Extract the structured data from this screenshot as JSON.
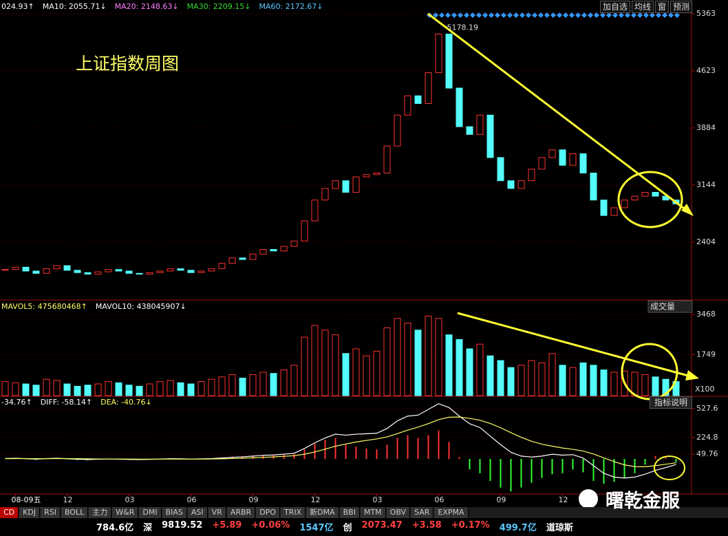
{
  "chart_data": [
    {
      "type": "candlestick",
      "title": "上证指数周图",
      "indicators": [
        {
          "text": "024.93↑",
          "color": "#ffffff"
        },
        {
          "text": "MA10: 2055.71↓",
          "color": "#ffffff"
        },
        {
          "text": "MA20: 2148.63↓",
          "color": "#ff80ff"
        },
        {
          "text": "MA30: 2209.15↓",
          "color": "#33dd33"
        },
        {
          "text": "MA60: 2172.67↓",
          "color": "#5bc8ff"
        }
      ],
      "peak_value": 5178.19,
      "peak_index": 42,
      "up_color": "#ff3232",
      "down_color": "#54fcfc",
      "categories": [
        null,
        "08-09五",
        null,
        null,
        null,
        null,
        "12",
        null,
        null,
        null,
        null,
        null,
        "03",
        null,
        null,
        null,
        null,
        null,
        "06",
        null,
        null,
        null,
        null,
        null,
        "09",
        null,
        null,
        null,
        null,
        null,
        "12",
        null,
        null,
        null,
        null,
        null,
        "03",
        null,
        null,
        null,
        null,
        null,
        "06",
        null,
        null,
        null,
        null,
        null,
        "09",
        null,
        null,
        null,
        null,
        null,
        "12",
        null,
        null,
        null,
        null,
        null,
        null,
        null,
        null,
        null,
        null,
        null
      ],
      "values": [
        2050,
        2080,
        2030,
        2000,
        2060,
        2100,
        2040,
        2010,
        1990,
        2020,
        2050,
        2030,
        2000,
        1990,
        2010,
        2030,
        2060,
        2040,
        2010,
        2030,
        2060,
        2130,
        2200,
        2180,
        2250,
        2310,
        2290,
        2350,
        2420,
        2680,
        2950,
        3100,
        3200,
        3050,
        3250,
        3280,
        3300,
        3650,
        4050,
        4300,
        4200,
        4600,
        5100,
        4400,
        3900,
        3800,
        4050,
        3500,
        3200,
        3100,
        3200,
        3350,
        3500,
        3600,
        3400,
        3550,
        3300,
        2950,
        2750,
        2850,
        2950,
        3000,
        3050,
        3000,
        2950,
        2900
      ],
      "ylim": [
        1664,
        5541
      ],
      "yticks": [
        2404,
        3144,
        3884,
        4623,
        5363
      ],
      "grid": true
    },
    {
      "type": "bar",
      "indicators": [
        {
          "text": "MAVOL5: 475680468↑",
          "color": "#ffff66"
        },
        {
          "text": "MAVOL10: 438045907↓",
          "color": "#ffffff"
        }
      ],
      "label": "成交量",
      "unit": "X100",
      "values": [
        600,
        550,
        500,
        450,
        700,
        650,
        500,
        400,
        450,
        500,
        600,
        550,
        450,
        400,
        500,
        600,
        650,
        550,
        500,
        600,
        700,
        800,
        900,
        750,
        900,
        1000,
        950,
        1100,
        1300,
        2500,
        3000,
        2800,
        2600,
        1800,
        2000,
        1700,
        1900,
        2900,
        3300,
        3100,
        2800,
        3400,
        3300,
        2600,
        2400,
        2000,
        2200,
        1700,
        1500,
        1200,
        1300,
        1500,
        1400,
        1800,
        1300,
        1200,
        1400,
        1300,
        1100,
        1000,
        1050,
        1000,
        900,
        800,
        700,
        600
      ],
      "ylim": [
        0,
        3970
      ],
      "yticks": [
        1749,
        3468
      ],
      "grid": true
    },
    {
      "type": "macd",
      "indicators": [
        {
          "text": "-34.76↑",
          "color": "#ffffff"
        },
        {
          "text": "DIFF: -58.14↑",
          "color": "#ffffff"
        },
        {
          "text": "DEA: -40.76↓",
          "color": "#ffff66"
        }
      ],
      "button": "指标说明",
      "pos_color": "#ff3232",
      "neg_color": "#33ff33",
      "diff_color": "#ffffff",
      "dea_color": "#ffff66",
      "values": [
        4,
        8,
        -2,
        -10,
        2,
        8,
        -4,
        -12,
        -14,
        -6,
        0,
        -4,
        -8,
        -8,
        -4,
        2,
        8,
        6,
        0,
        4,
        8,
        16,
        26,
        28,
        36,
        42,
        40,
        44,
        52,
        100,
        160,
        200,
        220,
        150,
        130,
        110,
        100,
        150,
        220,
        250,
        220,
        250,
        300,
        180,
        20,
        -110,
        -150,
        -230,
        -300,
        -340,
        -300,
        -250,
        -200,
        -160,
        -150,
        -110,
        -140,
        -230,
        -260,
        -240,
        -200,
        -150,
        -60,
        30,
        20,
        -34.76
      ],
      "diff": [
        5,
        8,
        3,
        -2,
        4,
        8,
        2,
        -3,
        -6,
        -3,
        0,
        -2,
        -5,
        -6,
        -4,
        -1,
        3,
        2,
        -1,
        1,
        4,
        10,
        18,
        22,
        30,
        38,
        42,
        50,
        60,
        110,
        170,
        220,
        260,
        250,
        260,
        265,
        270,
        320,
        400,
        450,
        460,
        520,
        580,
        540,
        450,
        370,
        330,
        240,
        150,
        70,
        30,
        20,
        30,
        50,
        40,
        45,
        10,
        -70,
        -150,
        -190,
        -200,
        -190,
        -160,
        -120,
        -90,
        -58.14
      ],
      "dea": [
        3,
        4,
        4,
        3,
        3,
        4,
        4,
        3,
        1,
        0,
        0,
        0,
        -1,
        -2,
        -2,
        -2,
        -1,
        -1,
        -1,
        -1,
        0,
        2,
        5,
        8,
        12,
        17,
        22,
        28,
        34,
        50,
        74,
        103,
        134,
        157,
        178,
        195,
        210,
        232,
        266,
        302,
        334,
        371,
        413,
        438,
        440,
        426,
        407,
        373,
        328,
        276,
        227,
        186,
        155,
        134,
        115,
        101,
        83,
        52,
        12,
        -28,
        -62,
        -80,
        -82,
        -70,
        -55,
        -40.76
      ],
      "ylim": [
        -368,
        643
      ],
      "yticks": [
        49.76,
        224.8,
        527.6
      ],
      "grid": true
    }
  ],
  "toolbar": [
    "加自选",
    "均线",
    "窗",
    "预测"
  ],
  "tabs": [
    "CD",
    "KDJ",
    "RSI",
    "BOLL",
    "主力",
    "W&R",
    "DMI",
    "BIAS",
    "ASI",
    "VR",
    "ARBR",
    "DPO",
    "TRIX",
    "新DMA",
    "BBI",
    "MTM",
    "OBV",
    "SAR",
    "EXPMA"
  ],
  "status": [
    {
      "text": "784.6亿",
      "color": "#ffffff"
    },
    {
      "text": "深",
      "color": "#ffffff"
    },
    {
      "text": "9819.52",
      "color": "#ffffff"
    },
    {
      "text": "+5.89",
      "color": "#ff4040"
    },
    {
      "text": "+0.06%",
      "color": "#ff4040"
    },
    {
      "text": "1547亿",
      "color": "#5bc8ff"
    },
    {
      "text": "创",
      "color": "#ffffff"
    },
    {
      "text": "2073.47",
      "color": "#ff4040"
    },
    {
      "text": "+3.58",
      "color": "#ff4040"
    },
    {
      "text": "+0.17%",
      "color": "#ff4040"
    },
    {
      "text": "499.7亿",
      "color": "#5bc8ff"
    },
    {
      "text": "道琼斯",
      "color": "#ffffff"
    }
  ],
  "watermark": "曙乾金服"
}
